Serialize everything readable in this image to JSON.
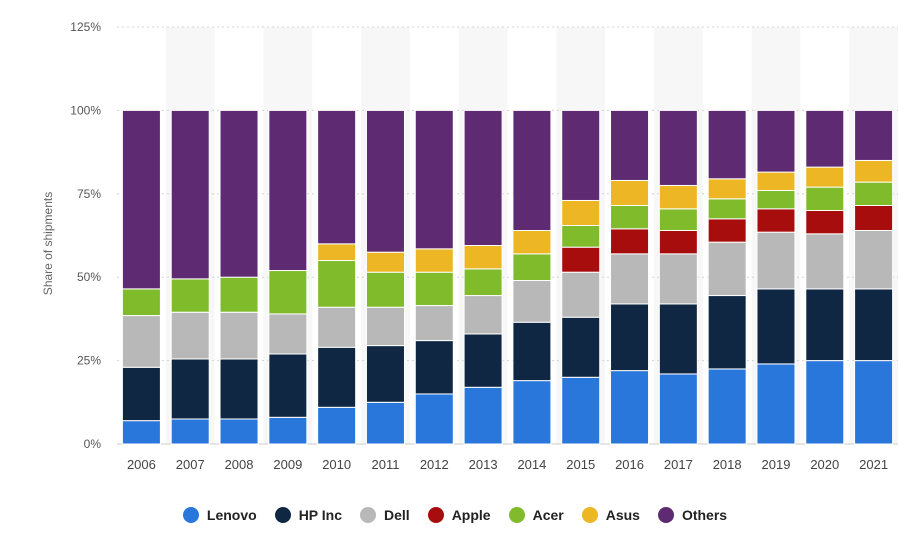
{
  "chart_data": {
    "type": "bar",
    "stacked": true,
    "ylabel": "Share of shipments",
    "ylim": [
      0,
      125
    ],
    "yticks": [
      "0%",
      "25%",
      "50%",
      "75%",
      "100%",
      "125%"
    ],
    "ytick_values": [
      0,
      25,
      50,
      75,
      100,
      125
    ],
    "categories": [
      "2006",
      "2007",
      "2008",
      "2009",
      "2010",
      "2011",
      "2012",
      "2013",
      "2014",
      "2015",
      "2016",
      "2017",
      "2018",
      "2019",
      "2020",
      "2021"
    ],
    "series": [
      {
        "name": "Lenovo",
        "color": "#2a77dc",
        "values": [
          7,
          7.5,
          7.5,
          8,
          11,
          12.5,
          15,
          17,
          19,
          20,
          22,
          21,
          22.5,
          24,
          25,
          25
        ]
      },
      {
        "name": "HP Inc",
        "color": "#0f2742",
        "values": [
          16,
          18,
          18,
          19,
          18,
          17,
          16,
          16,
          17.5,
          18,
          20,
          21,
          22,
          22.5,
          21.5,
          21.5
        ]
      },
      {
        "name": "Dell",
        "color": "#b8b8b8",
        "values": [
          15.5,
          14,
          14,
          12,
          12,
          11.5,
          10.5,
          11.5,
          12.5,
          13.5,
          15,
          15,
          16,
          17,
          16.5,
          17.5
        ]
      },
      {
        "name": "Apple",
        "color": "#a80d0d",
        "values": [
          0,
          0,
          0,
          0,
          0,
          0,
          0,
          0,
          0,
          7.5,
          7.5,
          7,
          7,
          7,
          7,
          7.5
        ]
      },
      {
        "name": "Acer",
        "color": "#7fbb2a",
        "values": [
          8,
          10,
          10.5,
          13,
          14,
          10.5,
          10,
          8,
          8,
          6.5,
          7,
          6.5,
          6,
          5.5,
          7,
          7
        ]
      },
      {
        "name": "Asus",
        "color": "#ecb624",
        "values": [
          0,
          0,
          0,
          0,
          5,
          6,
          7,
          7,
          7,
          7.5,
          7.5,
          7,
          6,
          5.5,
          6,
          6.5
        ]
      },
      {
        "name": "Others",
        "color": "#5e2a72",
        "values": [
          53.5,
          50.5,
          50,
          48,
          40,
          42.5,
          41.5,
          40.5,
          36,
          27,
          21,
          22.5,
          20.5,
          18.5,
          17,
          15
        ]
      }
    ],
    "grid": true,
    "legend": "bottom"
  }
}
